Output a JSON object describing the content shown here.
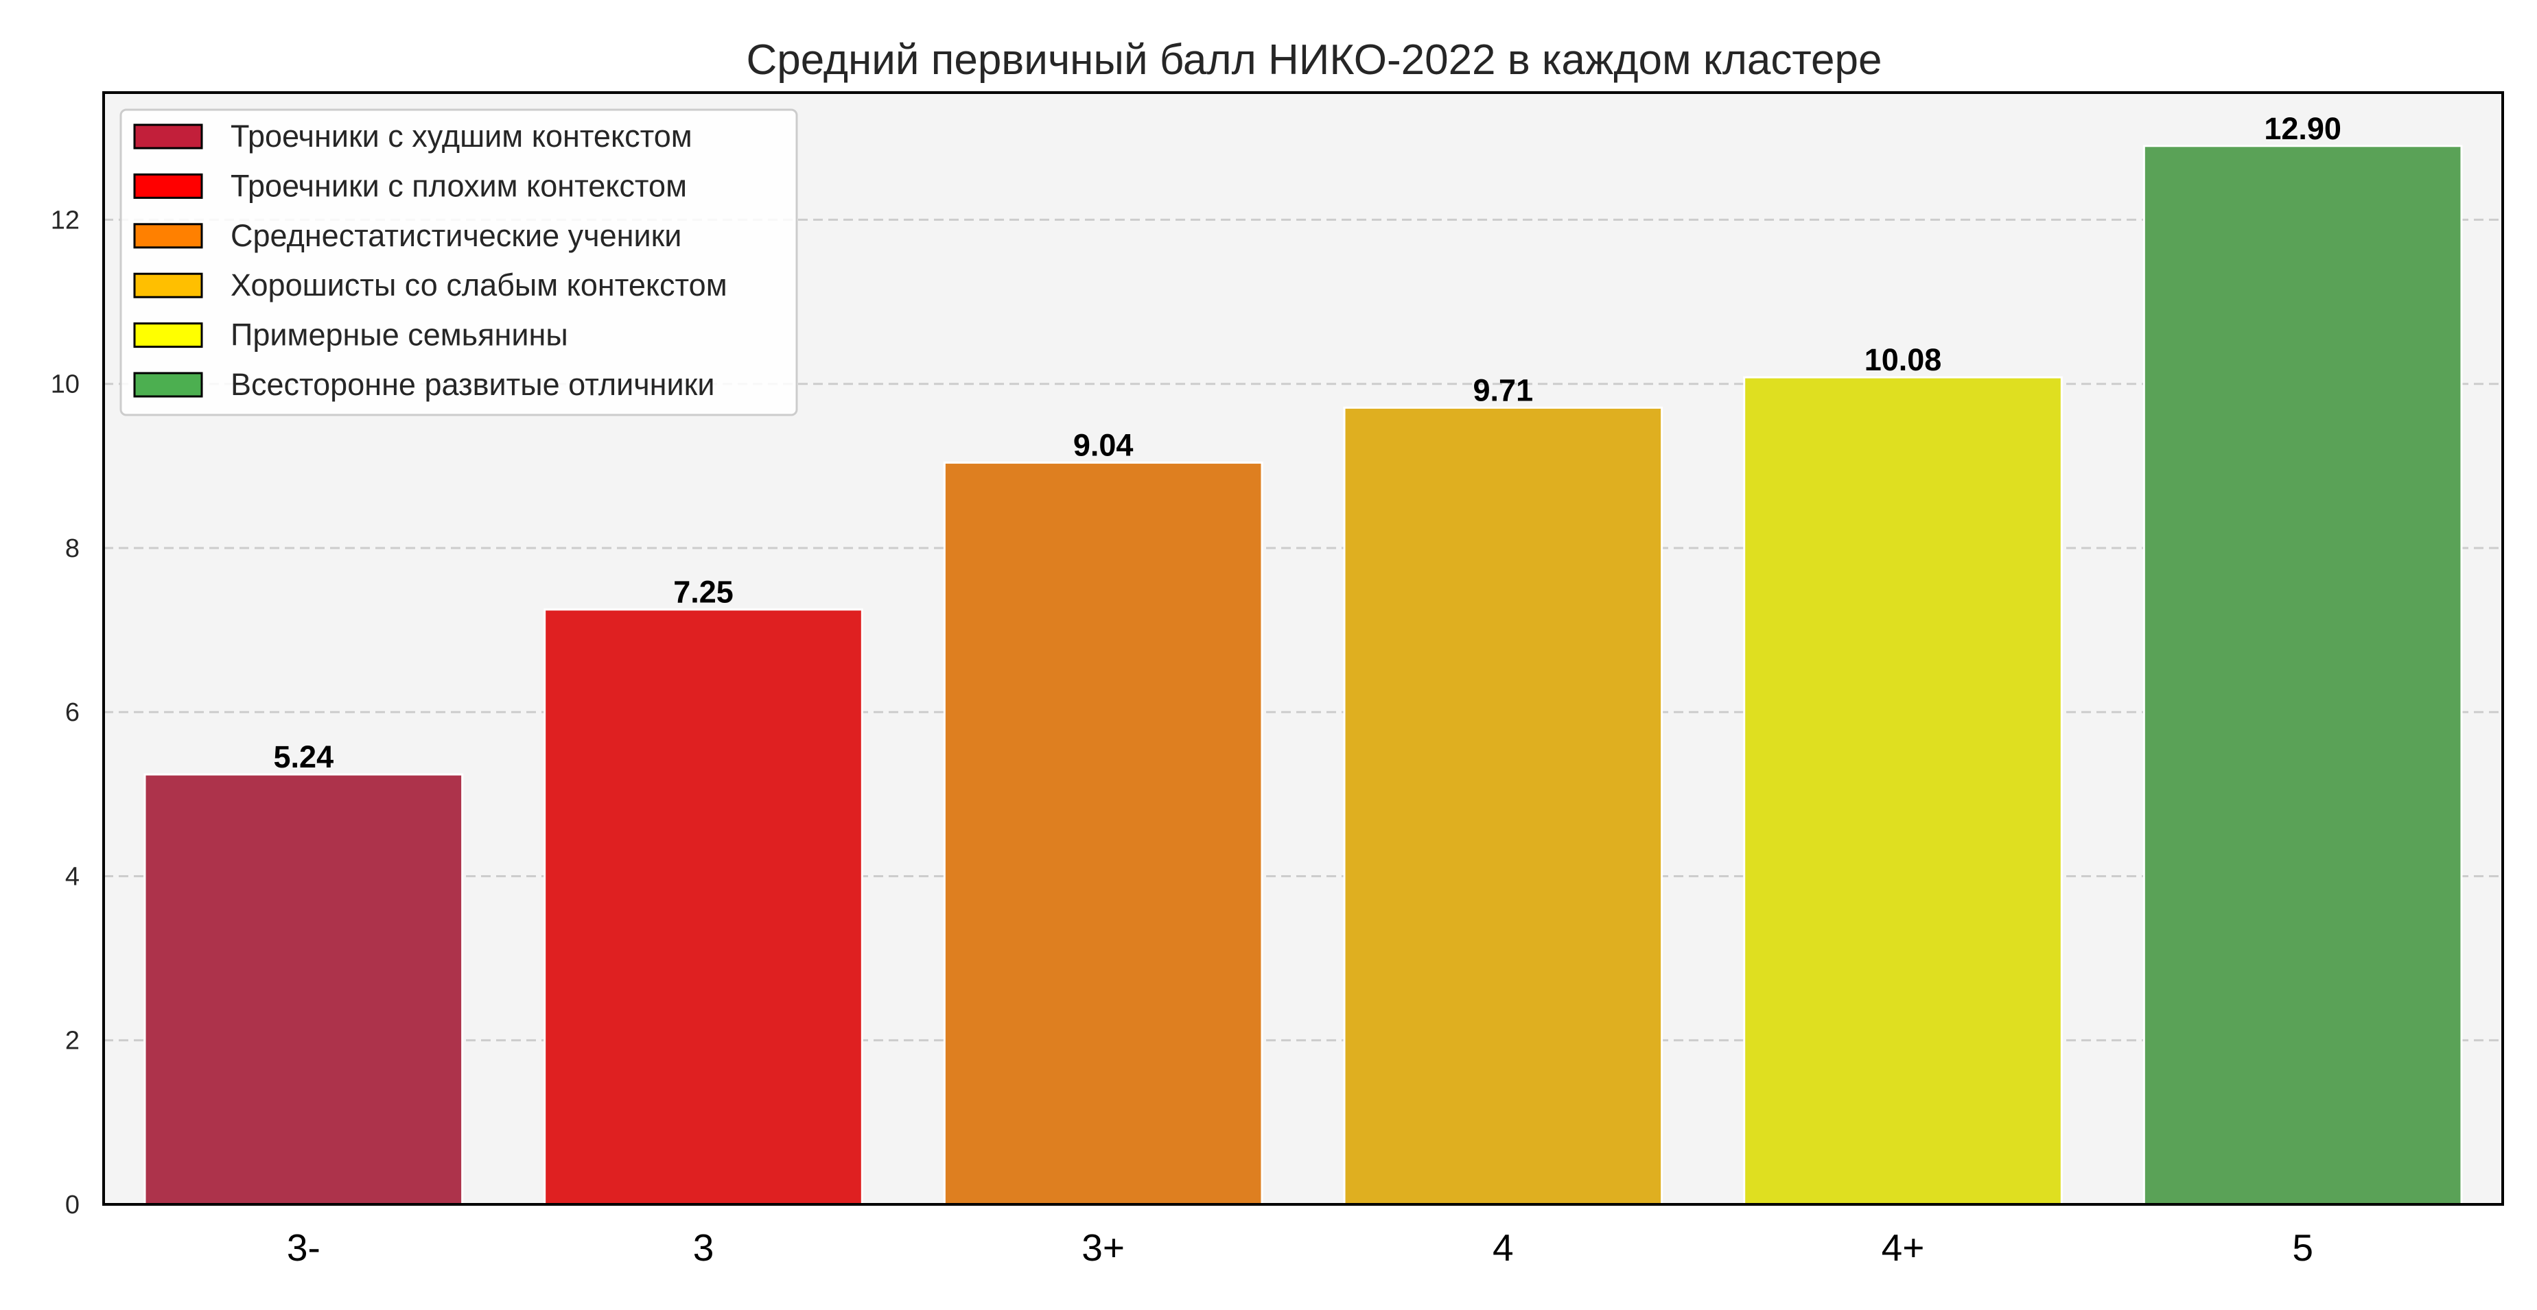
{
  "chart_data": {
    "type": "bar",
    "title": "Средний первичный балл НИКО-2022 в каждом кластере",
    "xlabel": "",
    "ylabel": "",
    "categories": [
      "3-",
      "3",
      "3+",
      "4",
      "4+",
      "5"
    ],
    "values": [
      5.24,
      7.25,
      9.04,
      9.71,
      10.08,
      12.9
    ],
    "value_labels": [
      "5.24",
      "7.25",
      "9.04",
      "9.71",
      "10.08",
      "12.90"
    ],
    "bar_colors": [
      "#ad334b",
      "#df2021",
      "#de7f20",
      "#dfaf20",
      "#dfdf20",
      "#5aa257"
    ],
    "ylim": [
      0,
      13.55
    ],
    "yticks": [
      0,
      2,
      4,
      6,
      8,
      10,
      12
    ],
    "grid": "horizontal-dashed",
    "legend_position": "top-left",
    "legend": [
      {
        "label": "Троечники с худшим контекстом",
        "color": "#c21f3a"
      },
      {
        "label": "Троечники с плохим контекстом",
        "color": "#ff0000"
      },
      {
        "label": "Среднестатистические ученики",
        "color": "#ff8000"
      },
      {
        "label": "Хорошисты со слабым контекстом",
        "color": "#ffbf00"
      },
      {
        "label": "Примерные семьянины",
        "color": "#ffff00"
      },
      {
        "label": "Всесторонне развитые отличники",
        "color": "#4caf50"
      }
    ],
    "colors": {
      "plot_background": "#f4f4f4",
      "grid": "#cccccc",
      "axis": "#000000"
    }
  }
}
